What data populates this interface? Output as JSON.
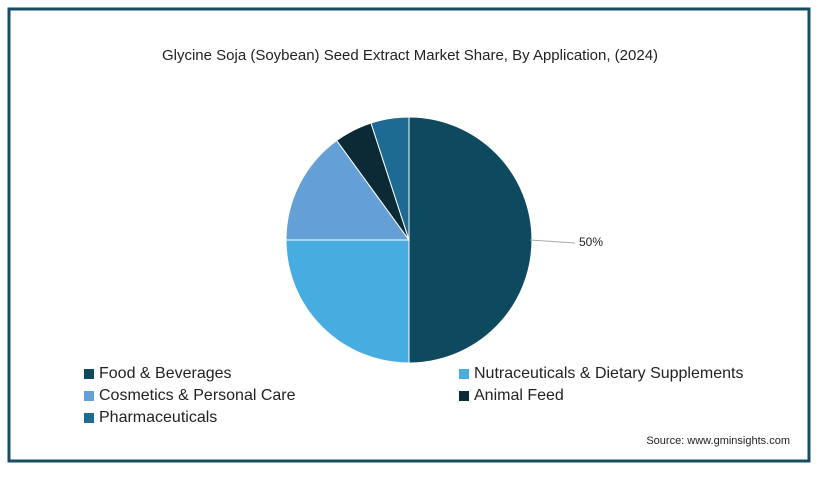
{
  "chart_data": {
    "type": "pie",
    "title": "Glycine Soja (Soybean) Seed Extract Market Share, By Application, (2024)",
    "categories": [
      "Food & Beverages",
      "Nutraceuticals & Dietary Supplements",
      "Cosmetics & Personal Care",
      "Animal Feed",
      "Pharmaceuticals"
    ],
    "values": [
      50,
      25,
      15,
      5,
      5
    ],
    "value_labels": [
      "50%",
      null,
      null,
      null,
      null
    ],
    "colors": [
      "#0e4a5f",
      "#47ade0",
      "#64a0d6",
      "#0b2a36",
      "#1d6a93"
    ],
    "source": "Source: www.gminsights.com"
  }
}
